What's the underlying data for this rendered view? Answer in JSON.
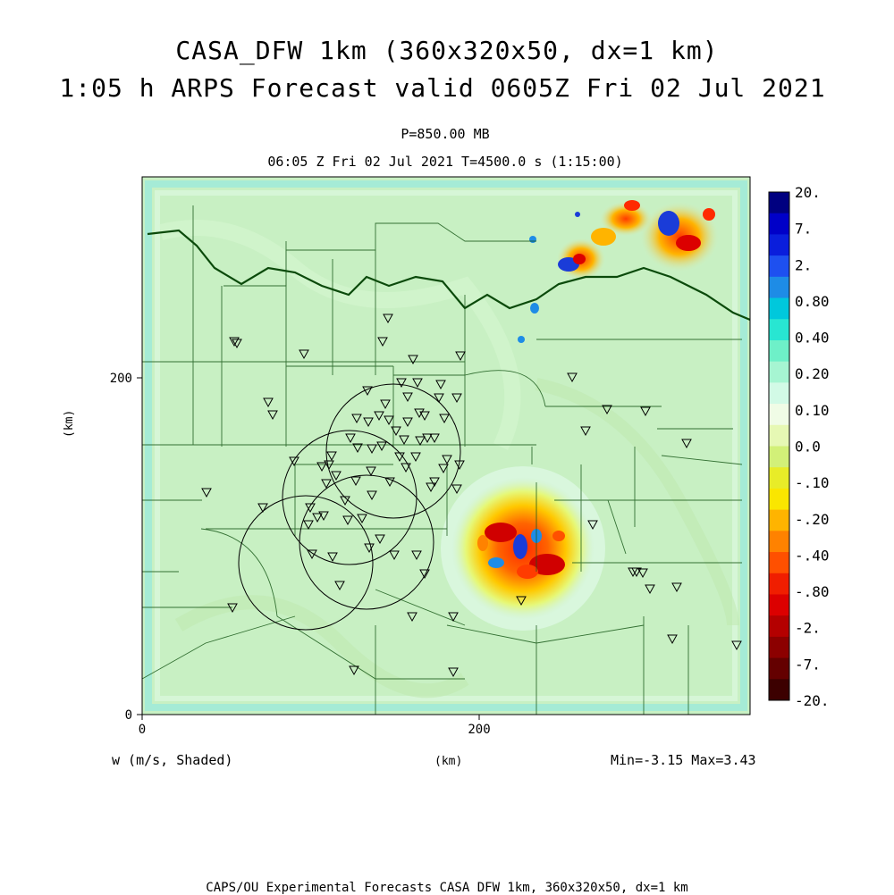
{
  "title": {
    "line1": "CASA_DFW 1km (360x320x50, dx=1 km)",
    "line2": "1:05 h ARPS Forecast valid 0605Z Fri 02 Jul 2021"
  },
  "subtitle": {
    "level": "P=850.00 MB",
    "time": "06:05 Z Fri 02 Jul 2021    T=4500.0 s (1:15:00)"
  },
  "axes": {
    "x_unit": "(km)",
    "y_unit": "(km)",
    "x_ticks": [
      "0",
      "200"
    ],
    "y_ticks": [
      "0",
      "200"
    ]
  },
  "field": {
    "label": "w (m/s, Shaded)",
    "minmax": "Min=-3.15 Max=3.43"
  },
  "colorbar": {
    "labels": [
      "20.",
      "7.",
      "2.",
      "0.80",
      "0.40",
      "0.20",
      "0.10",
      "0.0",
      "-.10",
      "-.20",
      "-.40",
      "-.80",
      "-2.",
      "-7.",
      "-20."
    ],
    "colors": [
      "#000080",
      "#0000c8",
      "#0a1edc",
      "#1e50f0",
      "#1e8ce6",
      "#00c8dc",
      "#28e6d2",
      "#6ef0c8",
      "#a6f5d2",
      "#d2fae6",
      "#f0fce6",
      "#e6f8b4",
      "#d2f078",
      "#e8ec28",
      "#fae600",
      "#ffb400",
      "#ff8200",
      "#ff5000",
      "#f01e00",
      "#dc0000",
      "#b40000",
      "#8c0000",
      "#640000",
      "#3c0000"
    ]
  },
  "footer": "CAPS/OU Experimental Forecasts  CASA DFW 1km, 360x320x50, dx=1 km"
}
